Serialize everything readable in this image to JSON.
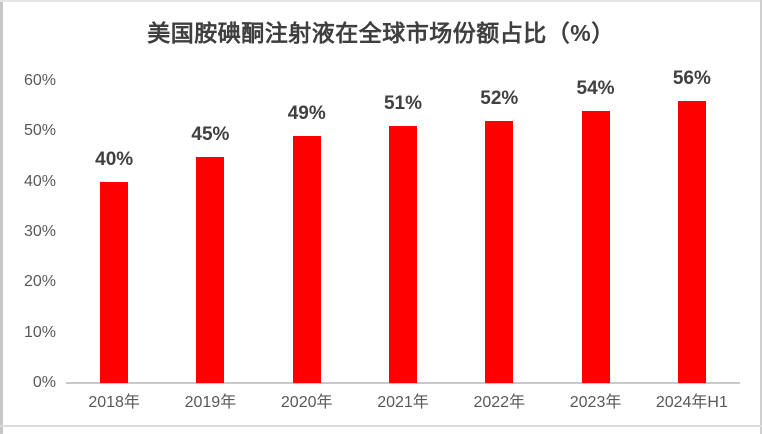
{
  "chart_data": {
    "type": "bar",
    "title": "美国胺碘酮注射液在全球市场份额占比（%）",
    "categories": [
      "2018年",
      "2019年",
      "2020年",
      "2021年",
      "2022年",
      "2023年",
      "2024年H1"
    ],
    "values": [
      40,
      45,
      49,
      51,
      52,
      54,
      56
    ],
    "value_labels": [
      "40%",
      "45%",
      "49%",
      "51%",
      "52%",
      "54%",
      "56%"
    ],
    "y_axis": {
      "tick_values": [
        0,
        10,
        20,
        30,
        40,
        50,
        60
      ],
      "tick_labels": [
        "0%",
        "10%",
        "20%",
        "30%",
        "40%",
        "50%",
        "60%"
      ]
    },
    "ylim": [
      0,
      60
    ],
    "xlabel": "",
    "ylabel": "",
    "grid": false,
    "legend": "none",
    "colors": {
      "bar": "#FF0000",
      "title": "#3F3F3F",
      "value_label": "#404040",
      "axis_tick": "#595959",
      "axis_line": "#C9C9C9"
    }
  }
}
